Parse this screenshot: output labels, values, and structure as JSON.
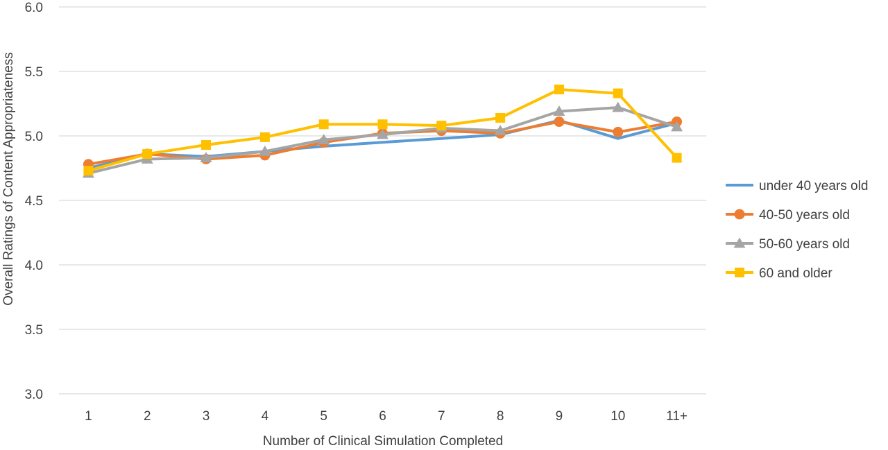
{
  "chart_data": {
    "type": "line",
    "title": "",
    "xlabel": "Number of Clinical Simulation Completed",
    "ylabel": "Overall Ratings of Content Appropriateness",
    "categories": [
      "1",
      "2",
      "3",
      "4",
      "5",
      "6",
      "7",
      "8",
      "9",
      "10",
      "11+"
    ],
    "ylim": [
      3.0,
      6.0
    ],
    "yticks": [
      "3.0",
      "3.5",
      "4.0",
      "4.5",
      "5.0",
      "5.5",
      "6.0"
    ],
    "grid": true,
    "legend_position": "right",
    "series": [
      {
        "name": "under 40 years old",
        "color": "#5b9bd5",
        "marker": "none",
        "values": [
          4.75,
          4.86,
          4.84,
          4.88,
          4.92,
          4.95,
          4.98,
          5.01,
          5.12,
          4.98,
          5.1
        ]
      },
      {
        "name": "40-50 years old",
        "color": "#ed7d31",
        "marker": "circle",
        "values": [
          4.78,
          4.86,
          4.82,
          4.85,
          4.95,
          5.02,
          5.04,
          5.02,
          5.11,
          5.03,
          5.11
        ]
      },
      {
        "name": "50-60 years old",
        "color": "#a5a5a5",
        "marker": "triangle",
        "values": [
          4.71,
          4.82,
          4.83,
          4.88,
          4.97,
          5.01,
          5.06,
          5.04,
          5.19,
          5.22,
          5.07
        ]
      },
      {
        "name": "60 and older",
        "color": "#ffc000",
        "marker": "square",
        "values": [
          4.73,
          4.86,
          4.93,
          4.99,
          5.09,
          5.09,
          5.08,
          5.14,
          5.36,
          5.33,
          4.83
        ]
      }
    ]
  }
}
